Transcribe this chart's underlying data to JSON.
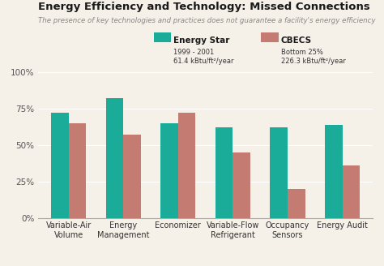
{
  "title": "Energy Efficiency and Technology: Missed Connections",
  "subtitle": "The presence of key technologies and practices does not guarantee a facility's energy efficiency",
  "categories": [
    "Variable-Air\nVolume",
    "Energy\nManagement",
    "Economizer",
    "Variable-Flow\nRefrigerant",
    "Occupancy\nSensors",
    "Energy Audit"
  ],
  "energy_star": [
    72,
    82,
    65,
    62,
    62,
    64
  ],
  "cbecs": [
    65,
    57,
    72,
    45,
    20,
    36
  ],
  "energy_star_color": "#1aab99",
  "cbecs_color": "#c47c72",
  "background_color": "#f5f0e8",
  "title_color": "#1a1a1a",
  "subtitle_color": "#888888",
  "legend_label_es": "Energy Star",
  "legend_label_cbecs": "CBECS",
  "legend_sub_es": "1999 - 2001\n61.4 kBtu/ft²/year",
  "legend_sub_cbecs": "Bottom 25%\n226.3 kBtu/ft²/year",
  "ylim": [
    0,
    100
  ],
  "yticks": [
    0,
    25,
    50,
    75,
    100
  ],
  "ytick_labels": [
    "0%",
    "25%",
    "50%",
    "75%",
    "100%"
  ],
  "bar_width": 0.32
}
